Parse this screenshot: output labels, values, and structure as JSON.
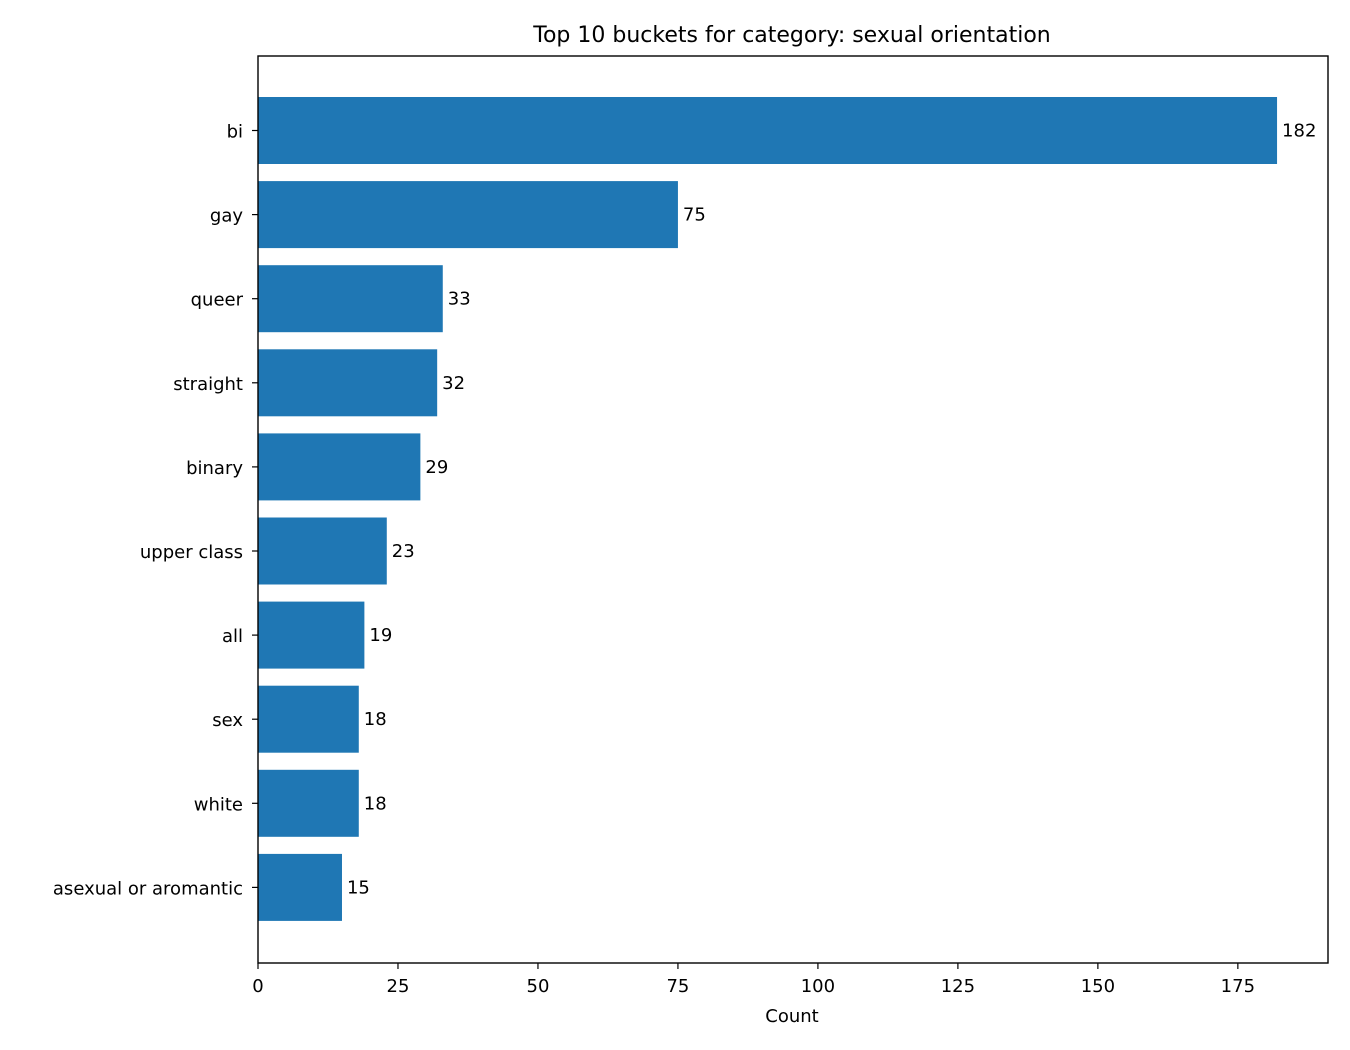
{
  "chart_data": {
    "type": "bar",
    "orientation": "horizontal",
    "title": "Top 10 buckets for category: sexual orientation",
    "xlabel": "Count",
    "ylabel": "",
    "categories": [
      "bi",
      "gay",
      "queer",
      "straight",
      "binary",
      "upper class",
      "all",
      "sex",
      "white",
      "asexual or aromantic"
    ],
    "values": [
      182,
      75,
      33,
      32,
      29,
      23,
      19,
      18,
      18,
      15
    ],
    "xlim": [
      0,
      191.1
    ],
    "xticks": [
      0,
      25,
      50,
      75,
      100,
      125,
      150,
      175
    ],
    "bar_color": "#1f77b4",
    "grid": false,
    "legend": "none"
  }
}
